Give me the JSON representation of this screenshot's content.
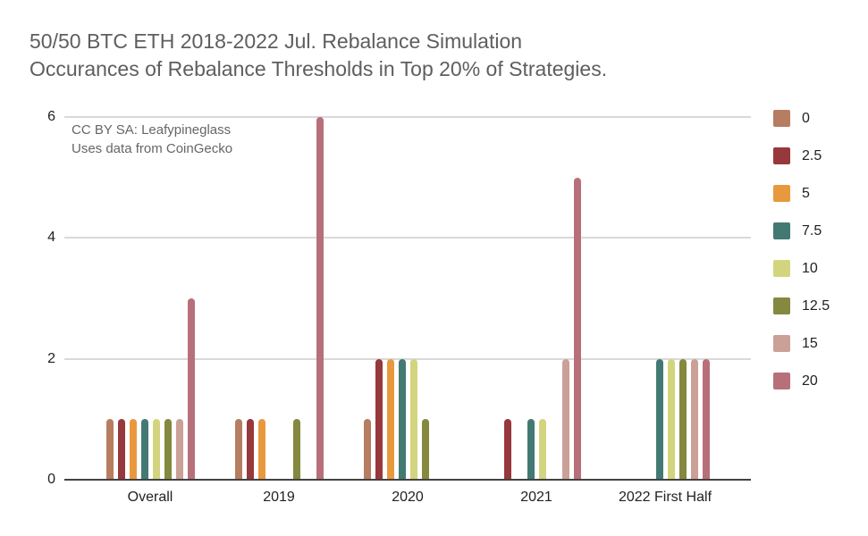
{
  "title": {
    "line1": "50/50 BTC ETH 2018-2022 Jul. Rebalance Simulation",
    "line2": "Occurances of Rebalance Thresholds in Top 20% of Strategies."
  },
  "annotation": {
    "line1": "CC BY SA: Leafypineglass",
    "line2": "Uses data from CoinGecko"
  },
  "chart_data": {
    "type": "bar",
    "title": "50/50 BTC ETH 2018-2022 Jul. Rebalance Simulation Occurances of Rebalance Thresholds in Top 20% of Strategies.",
    "categories": [
      "Overall",
      "2019",
      "2020",
      "2021",
      "2022 First Half"
    ],
    "series": [
      {
        "name": "0",
        "color": "#B67D60",
        "values": [
          1,
          1,
          1,
          0,
          0
        ]
      },
      {
        "name": "2.5",
        "color": "#97383C",
        "values": [
          1,
          1,
          2,
          1,
          0
        ]
      },
      {
        "name": "5",
        "color": "#E8993E",
        "values": [
          1,
          1,
          2,
          0,
          0
        ]
      },
      {
        "name": "7.5",
        "color": "#437973",
        "values": [
          1,
          0,
          2,
          1,
          2
        ]
      },
      {
        "name": "10",
        "color": "#D2D57E",
        "values": [
          1,
          0,
          2,
          1,
          2
        ]
      },
      {
        "name": "12.5",
        "color": "#85883F",
        "values": [
          1,
          1,
          1,
          0,
          2
        ]
      },
      {
        "name": "15",
        "color": "#CBA096",
        "values": [
          1,
          0,
          0,
          2,
          2
        ]
      },
      {
        "name": "20",
        "color": "#B7707A",
        "values": [
          3,
          6,
          0,
          5,
          2
        ]
      }
    ],
    "y_ticks": [
      0,
      2,
      4,
      6
    ],
    "ylim": [
      0,
      6
    ],
    "xlabel": "",
    "ylabel": "",
    "grid": true,
    "legend_position": "right",
    "annotation": [
      "CC BY SA: Leafypineglass",
      "Uses data from CoinGecko"
    ]
  },
  "colors": {
    "background": "#FFFFFF",
    "title_text": "#5E5E5E",
    "axis_label": "#222222",
    "annotation_text": "#666666",
    "gridline": "#D9D9D9",
    "axis_line": "#424242"
  }
}
